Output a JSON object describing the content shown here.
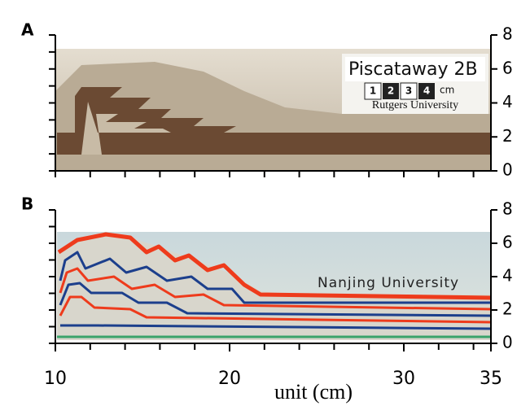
{
  "panels": [
    {
      "label": "A",
      "caption": "Piscataway 2B",
      "scale_numbers": [
        "1",
        "2",
        "3",
        "4"
      ],
      "scale_unit": "cm",
      "institution": "Rutgers University"
    },
    {
      "label": "B",
      "institution": "Nanjing University"
    }
  ],
  "y_axis": {
    "ticks": [
      0,
      2,
      4,
      6,
      8
    ]
  },
  "x_axis": {
    "ticks": [
      10,
      20,
      30,
      35
    ],
    "label": "unit (cm)"
  }
}
